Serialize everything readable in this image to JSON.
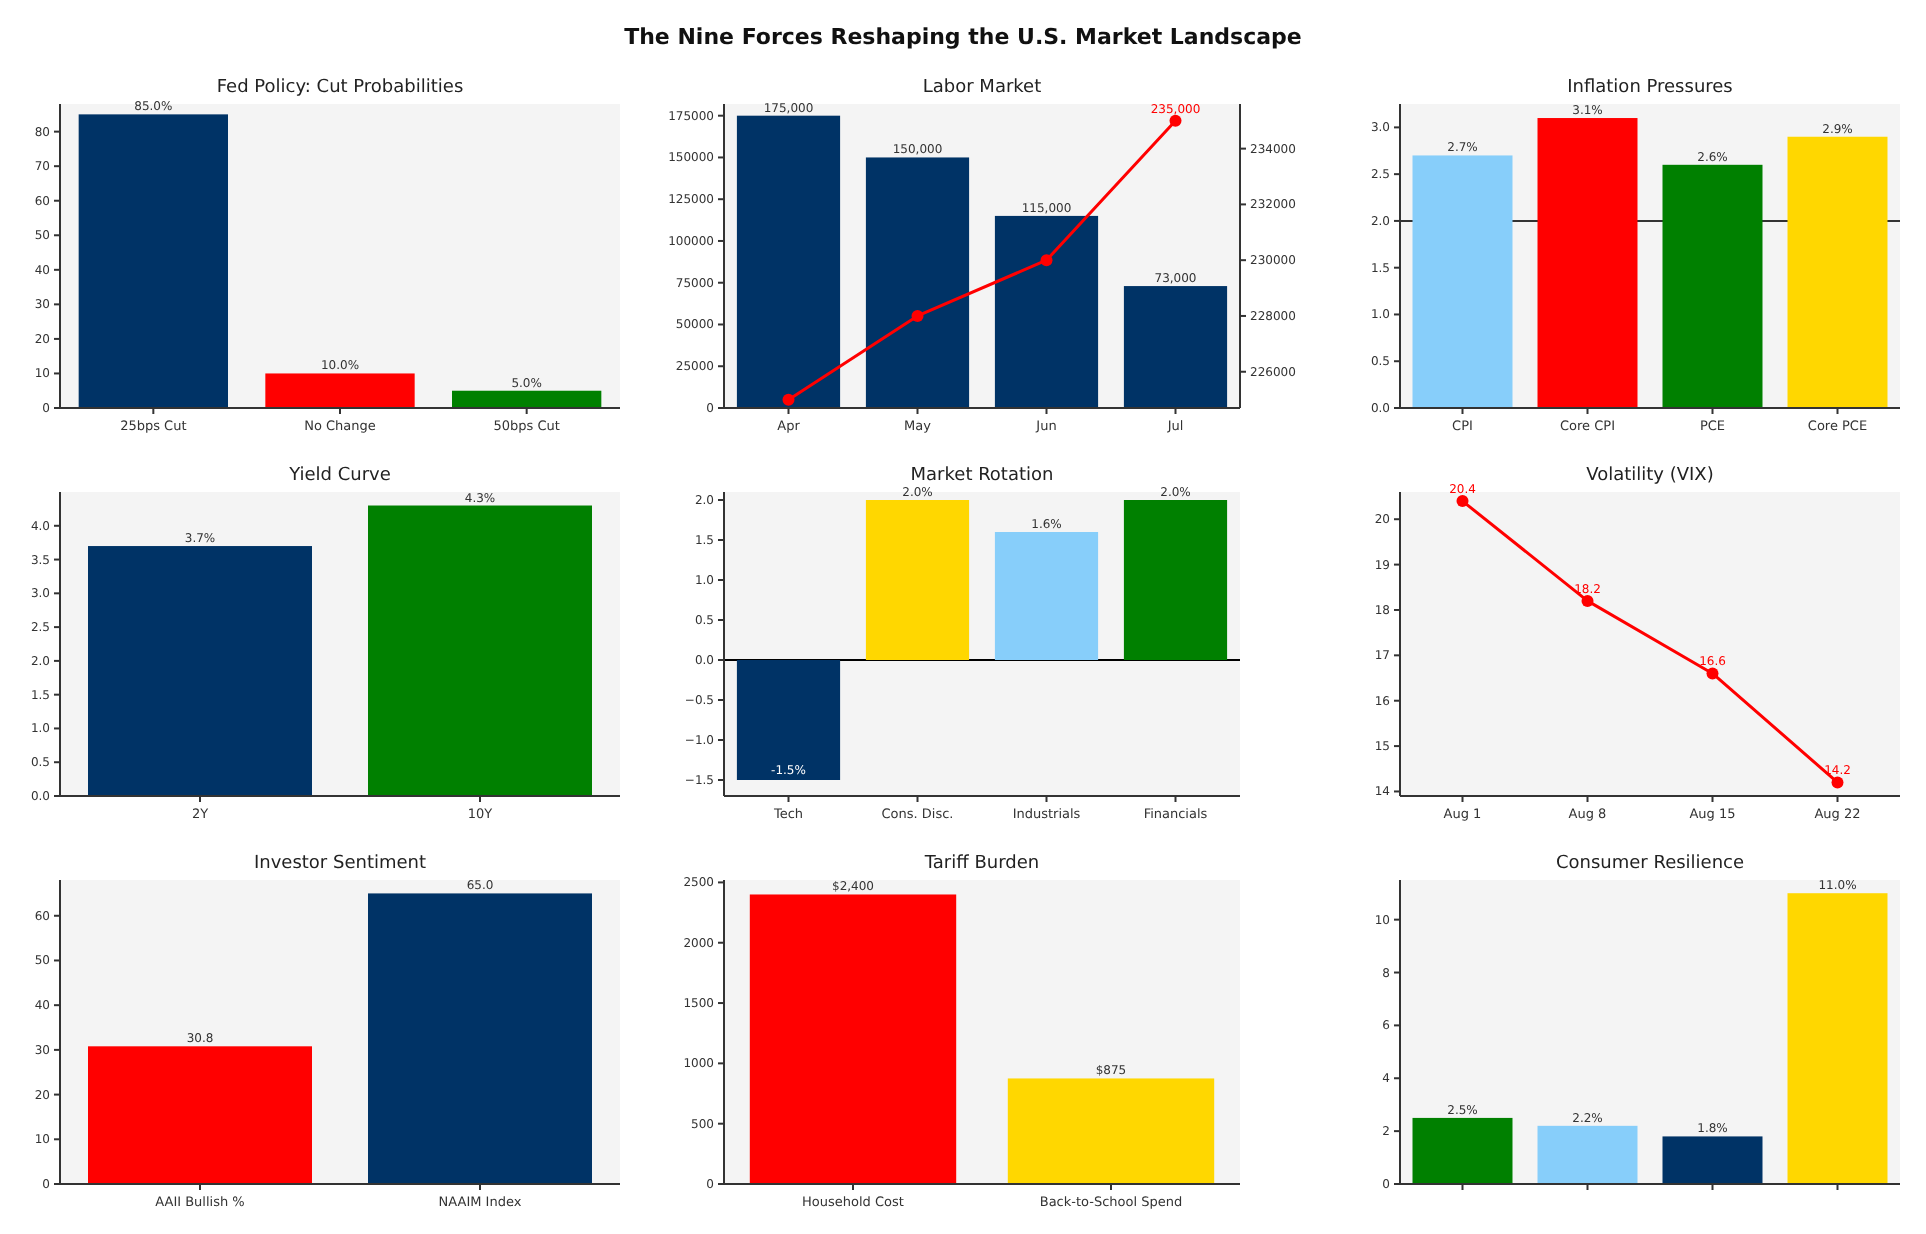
{
  "chart_data": [
    {
      "type": "bar",
      "annotations": [
        "The Nine Forces Reshaping the U.S. Market Landscape"
      ],
      "title": "Fed Policy: Cut Probabilities",
      "categories": [
        "25bps Cut",
        "No Change",
        "50bps Cut"
      ],
      "values": [
        85,
        10,
        5
      ],
      "colors": [
        "#003366",
        "#ff0000",
        "#008000"
      ],
      "value_labels": [
        "85.0%",
        "10.0%",
        "5.0%"
      ],
      "ylim": [
        0,
        88
      ],
      "yticks": [
        0,
        10,
        20,
        30,
        40,
        50,
        60,
        70,
        80
      ]
    },
    {
      "type": "bar",
      "title": "Labor Market",
      "categories": [
        "Apr",
        "May",
        "Jun",
        "Jul"
      ],
      "series": [
        {
          "type": "bar",
          "color": "#003366",
          "values": [
            175000,
            150000,
            115000,
            73000
          ],
          "value_labels": [
            "175,000",
            "150,000",
            "115,000",
            "73,000"
          ]
        },
        {
          "type": "line",
          "axis": "y2",
          "color": "#ff0000",
          "values": [
            225000,
            228000,
            230000,
            235000
          ],
          "value_labels": [
            null,
            null,
            null,
            "235,000"
          ]
        }
      ],
      "marker": "circle",
      "ylim": [
        0,
        182000
      ],
      "yticks": [
        0,
        25000,
        50000,
        75000,
        100000,
        125000,
        150000,
        175000
      ],
      "y2lim": [
        224700,
        235600
      ],
      "y2ticks": [
        226000,
        228000,
        230000,
        232000,
        234000
      ]
    },
    {
      "type": "bar",
      "title": "Inflation Pressures",
      "categories": [
        "CPI",
        "Core CPI",
        "PCE",
        "Core PCE"
      ],
      "values": [
        2.7,
        3.1,
        2.6,
        2.9
      ],
      "colors": [
        "#87cefa",
        "#ff0000",
        "#008000",
        "#ffd700"
      ],
      "value_labels": [
        "2.7%",
        "3.1%",
        "2.6%",
        "2.9%"
      ],
      "ylim": [
        0,
        3.25
      ],
      "yticks": [
        {
          "value": 0,
          "label": "0.0"
        },
        {
          "value": 0.5,
          "label": "0.5"
        },
        {
          "value": 1,
          "label": "1.0"
        },
        {
          "value": 1.5,
          "label": "1.5"
        },
        {
          "value": 2,
          "label": "2.0"
        },
        {
          "value": 2.5,
          "label": "2.5"
        },
        {
          "value": 3,
          "label": "3.0"
        }
      ],
      "ref_lines": [
        {
          "axis": "y",
          "value": 2,
          "color": "#333333"
        }
      ]
    },
    {
      "type": "bar",
      "title": "Yield Curve",
      "categories": [
        "2Y",
        "10Y"
      ],
      "values": [
        3.7,
        4.3
      ],
      "colors": [
        "#003366",
        "#008000"
      ],
      "value_labels": [
        "3.7%",
        "4.3%"
      ],
      "ylim": [
        0,
        4.5
      ],
      "yticks": [
        {
          "value": 0,
          "label": "0.0"
        },
        {
          "value": 0.5,
          "label": "0.5"
        },
        {
          "value": 1,
          "label": "1.0"
        },
        {
          "value": 1.5,
          "label": "1.5"
        },
        {
          "value": 2,
          "label": "2.0"
        },
        {
          "value": 2.5,
          "label": "2.5"
        },
        {
          "value": 3,
          "label": "3.0"
        },
        {
          "value": 3.5,
          "label": "3.5"
        },
        {
          "value": 4,
          "label": "4.0"
        }
      ]
    },
    {
      "type": "bar",
      "title": "Market Rotation",
      "categories": [
        "Tech",
        "Cons. Disc.",
        "Industrials",
        "Financials"
      ],
      "values": [
        -1.5,
        2.0,
        1.6,
        2.0
      ],
      "colors": [
        "#003366",
        "#ffd700",
        "#87cefa",
        "#008000"
      ],
      "value_labels": [
        "-1.5%",
        "2.0%",
        "1.6%",
        "2.0%"
      ],
      "ylim": [
        -1.7,
        2.1
      ],
      "yticks": [
        {
          "value": -1.5,
          "label": "−1.5"
        },
        {
          "value": -1,
          "label": "−1.0"
        },
        {
          "value": -0.5,
          "label": "−0.5"
        },
        {
          "value": 0,
          "label": "0.0"
        },
        {
          "value": 0.5,
          "label": "0.5"
        },
        {
          "value": 1,
          "label": "1.0"
        },
        {
          "value": 1.5,
          "label": "1.5"
        },
        {
          "value": 2,
          "label": "2.0"
        }
      ],
      "ref_lines": [
        {
          "axis": "y",
          "value": 0,
          "color": "#000000"
        }
      ]
    },
    {
      "type": "line",
      "title": "Volatility (VIX)",
      "categories": [
        "Aug 1",
        "Aug 8",
        "Aug 15",
        "Aug 22"
      ],
      "values": [
        20.4,
        18.2,
        16.6,
        14.2
      ],
      "color": "#ff0000",
      "marker": "circle",
      "value_labels": [
        "20.4",
        "18.2",
        "16.6",
        "14.2"
      ],
      "ylim": [
        13.9,
        20.6
      ],
      "yticks": [
        14,
        15,
        16,
        17,
        18,
        19,
        20
      ]
    },
    {
      "type": "bar",
      "title": "Investor Sentiment",
      "categories": [
        "AAII Bullish %",
        "NAAIM Index"
      ],
      "values": [
        30.8,
        65.0
      ],
      "colors": [
        "#ff0000",
        "#003366"
      ],
      "value_labels": [
        "30.8",
        "65.0"
      ],
      "ylim": [
        0,
        68
      ],
      "yticks": [
        0,
        10,
        20,
        30,
        40,
        50,
        60
      ]
    },
    {
      "type": "bar",
      "title": "Tariff Burden",
      "categories": [
        "Household Cost",
        "Back-to-School Spend"
      ],
      "values": [
        2400,
        875
      ],
      "colors": [
        "#ff0000",
        "#ffd700"
      ],
      "value_labels": [
        "$2,400",
        "$875"
      ],
      "ylim": [
        0,
        2520
      ],
      "yticks": [
        0,
        500,
        1000,
        1500,
        2000,
        2500
      ]
    },
    {
      "type": "bar",
      "title": "Consumer Resilience",
      "categories": [
        null,
        null,
        null,
        null
      ],
      "values": [
        2.5,
        2.2,
        1.8,
        11.0
      ],
      "colors": [
        "#008000",
        "#87cefa",
        "#003366",
        "#ffd700"
      ],
      "value_labels": [
        "2.5%",
        "2.2%",
        "1.8%",
        "11.0%"
      ],
      "ylim": [
        0,
        11.5
      ],
      "yticks": [
        0,
        2,
        4,
        6,
        8,
        10
      ]
    }
  ]
}
